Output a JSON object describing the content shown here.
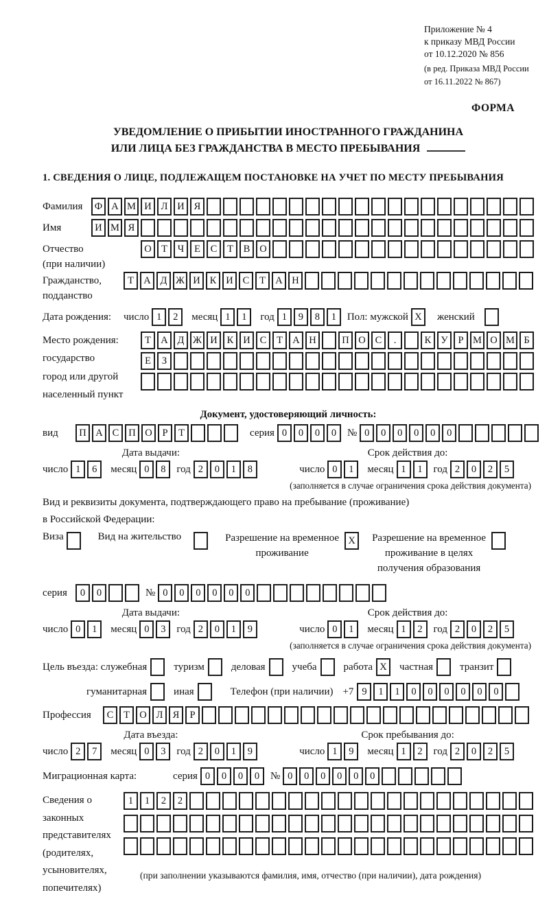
{
  "header": {
    "line1": "Приложение № 4",
    "line2": "к приказу МВД России",
    "line3": "от 10.12.2020 № 856",
    "line4": "(в ред. Приказа МВД России",
    "line5": "от 16.11.2022 № 867)",
    "form_label": "ФОРМА"
  },
  "title": {
    "line1": "УВЕДОМЛЕНИЕ О ПРИБЫТИИ ИНОСТРАННОГО ГРАЖДАНИНА",
    "line2": "ИЛИ ЛИЦА БЕЗ ГРАЖДАНСТВА В МЕСТО ПРЕБЫВАНИЯ"
  },
  "section1_heading": "1. СВЕДЕНИЯ О ЛИЦЕ, ПОДЛЕЖАЩЕМ ПОСТАНОВКЕ НА УЧЕТ ПО МЕСТУ ПРЕБЫВАНИЯ",
  "labels": {
    "surname": "Фамилия",
    "name": "Имя",
    "patronymic": "Отчество",
    "patronymic_note": "(при наличии)",
    "citizenship1": "Гражданство,",
    "citizenship2": "подданство",
    "birth_date": "Дата рождения:",
    "day": "число",
    "month": "месяц",
    "year": "год",
    "sex_male": "Пол: мужской",
    "sex_female": "женский",
    "birth_place1": "Место рождения:",
    "birth_place2": "государство",
    "birth_place3": "город или другой",
    "birth_place4": "населенный пункт",
    "identity_doc_heading": "Документ, удостоверяющий личность:",
    "doc_type": "вид",
    "series": "серия",
    "number": "№",
    "issue_date": "Дата выдачи:",
    "valid_until": "Срок действия до:",
    "restriction_note": "(заполняется в случае ограничения срока действия документа)",
    "residence_doc_line1": "Вид и реквизиты документа, подтверждающего право на пребывание (проживание)",
    "residence_doc_line2": "в Российской Федерации:",
    "visa": "Виза",
    "residence_permit": "Вид на жительство",
    "temp_res_line1": "Разрешение на временное",
    "temp_res_line2": "проживание",
    "temp_edu_line1": "Разрешение на временное",
    "temp_edu_line2": "проживание в целях",
    "temp_edu_line3": "получения образования",
    "purpose": "Цель въезда: служебная",
    "tourism": "туризм",
    "business": "деловая",
    "study": "учеба",
    "work": "работа",
    "private": "частная",
    "transit": "транзит",
    "humanitarian": "гуманитарная",
    "other": "иная",
    "phone": "Телефон (при наличии)",
    "phone_prefix": "+7",
    "profession": "Профессия",
    "entry_date": "Дата въезда:",
    "stay_until": "Срок пребывания до:",
    "migration_card": "Миграционная карта:",
    "guardians1": "Сведения о",
    "guardians2": "законных",
    "guardians3": "представителях",
    "guardians4": "(родителях,",
    "guardians5": "усыновителях,",
    "guardians6": "попечителях)",
    "guardians_note": "(при заполнении указываются фамилия, имя, отчество (при наличии), дата рождения)"
  },
  "fields": {
    "surname": {
      "v": "ФАМИЛИЯ",
      "n": 27
    },
    "name": {
      "v": "ИМЯ",
      "n": 27
    },
    "patronymic": {
      "v": "ОТЧЕСТВО",
      "n": 24
    },
    "citizenship": {
      "v": "ТАДЖИКИСТАН",
      "n": 25
    },
    "birth_day": {
      "v": "12",
      "n": 2
    },
    "birth_month": {
      "v": "11",
      "n": 2
    },
    "birth_year": {
      "v": "1981",
      "n": 4
    },
    "sex_male": {
      "v": "X",
      "n": 1
    },
    "sex_female": {
      "v": "",
      "n": 1
    },
    "birth_place_row1": {
      "v": "ТАДЖИКИСТАН ПОС. КУРМОМБ",
      "n": 24
    },
    "birth_place_row2": {
      "v": "ЕЗ",
      "n": 24
    },
    "birth_place_row3": {
      "v": "",
      "n": 24
    },
    "doc_type": {
      "v": "ПАСПОРТ",
      "n": 10
    },
    "doc_series": {
      "v": "0000",
      "n": 4
    },
    "doc_number": {
      "v": "000000",
      "n": 11
    },
    "doc_issue_day": {
      "v": "16",
      "n": 2
    },
    "doc_issue_month": {
      "v": "08",
      "n": 2
    },
    "doc_issue_year": {
      "v": "2018",
      "n": 4
    },
    "doc_valid_day": {
      "v": "01",
      "n": 2
    },
    "doc_valid_month": {
      "v": "11",
      "n": 2
    },
    "doc_valid_year": {
      "v": "2025",
      "n": 4
    },
    "visa": {
      "v": "",
      "n": 1
    },
    "residence_permit": {
      "v": "",
      "n": 1
    },
    "temp_residence": {
      "v": "X",
      "n": 1
    },
    "temp_residence_edu": {
      "v": "",
      "n": 1
    },
    "rvp_series": {
      "v": "00",
      "n": 4
    },
    "rvp_number": {
      "v": "000000",
      "n": 14
    },
    "rvp_issue_day": {
      "v": "01",
      "n": 2
    },
    "rvp_issue_month": {
      "v": "03",
      "n": 2
    },
    "rvp_issue_year": {
      "v": "2019",
      "n": 4
    },
    "rvp_valid_day": {
      "v": "01",
      "n": 2
    },
    "rvp_valid_month": {
      "v": "12",
      "n": 2
    },
    "rvp_valid_year": {
      "v": "2025",
      "n": 4
    },
    "purpose_official": {
      "v": "",
      "n": 1
    },
    "purpose_tourism": {
      "v": "",
      "n": 1
    },
    "purpose_business": {
      "v": "",
      "n": 1
    },
    "purpose_study": {
      "v": "",
      "n": 1
    },
    "purpose_work": {
      "v": "X",
      "n": 1
    },
    "purpose_private": {
      "v": "",
      "n": 1
    },
    "purpose_transit": {
      "v": "",
      "n": 1
    },
    "purpose_humanitarian": {
      "v": "",
      "n": 1
    },
    "purpose_other": {
      "v": "",
      "n": 1
    },
    "phone": {
      "v": "911000000",
      "n": 10
    },
    "profession": {
      "v": "СТОЛЯР",
      "n": 26
    },
    "entry_day": {
      "v": "27",
      "n": 2
    },
    "entry_month": {
      "v": "03",
      "n": 2
    },
    "entry_year": {
      "v": "2019",
      "n": 4
    },
    "stay_day": {
      "v": "19",
      "n": 2
    },
    "stay_month": {
      "v": "12",
      "n": 2
    },
    "stay_year": {
      "v": "2025",
      "n": 4
    },
    "mig_series": {
      "v": "0000",
      "n": 4
    },
    "mig_number": {
      "v": "000000",
      "n": 11
    },
    "guardians_row1": {
      "v": "1122",
      "n": 25
    },
    "guardians_row2": {
      "v": "",
      "n": 25
    },
    "guardians_row3": {
      "v": "",
      "n": 25
    }
  }
}
